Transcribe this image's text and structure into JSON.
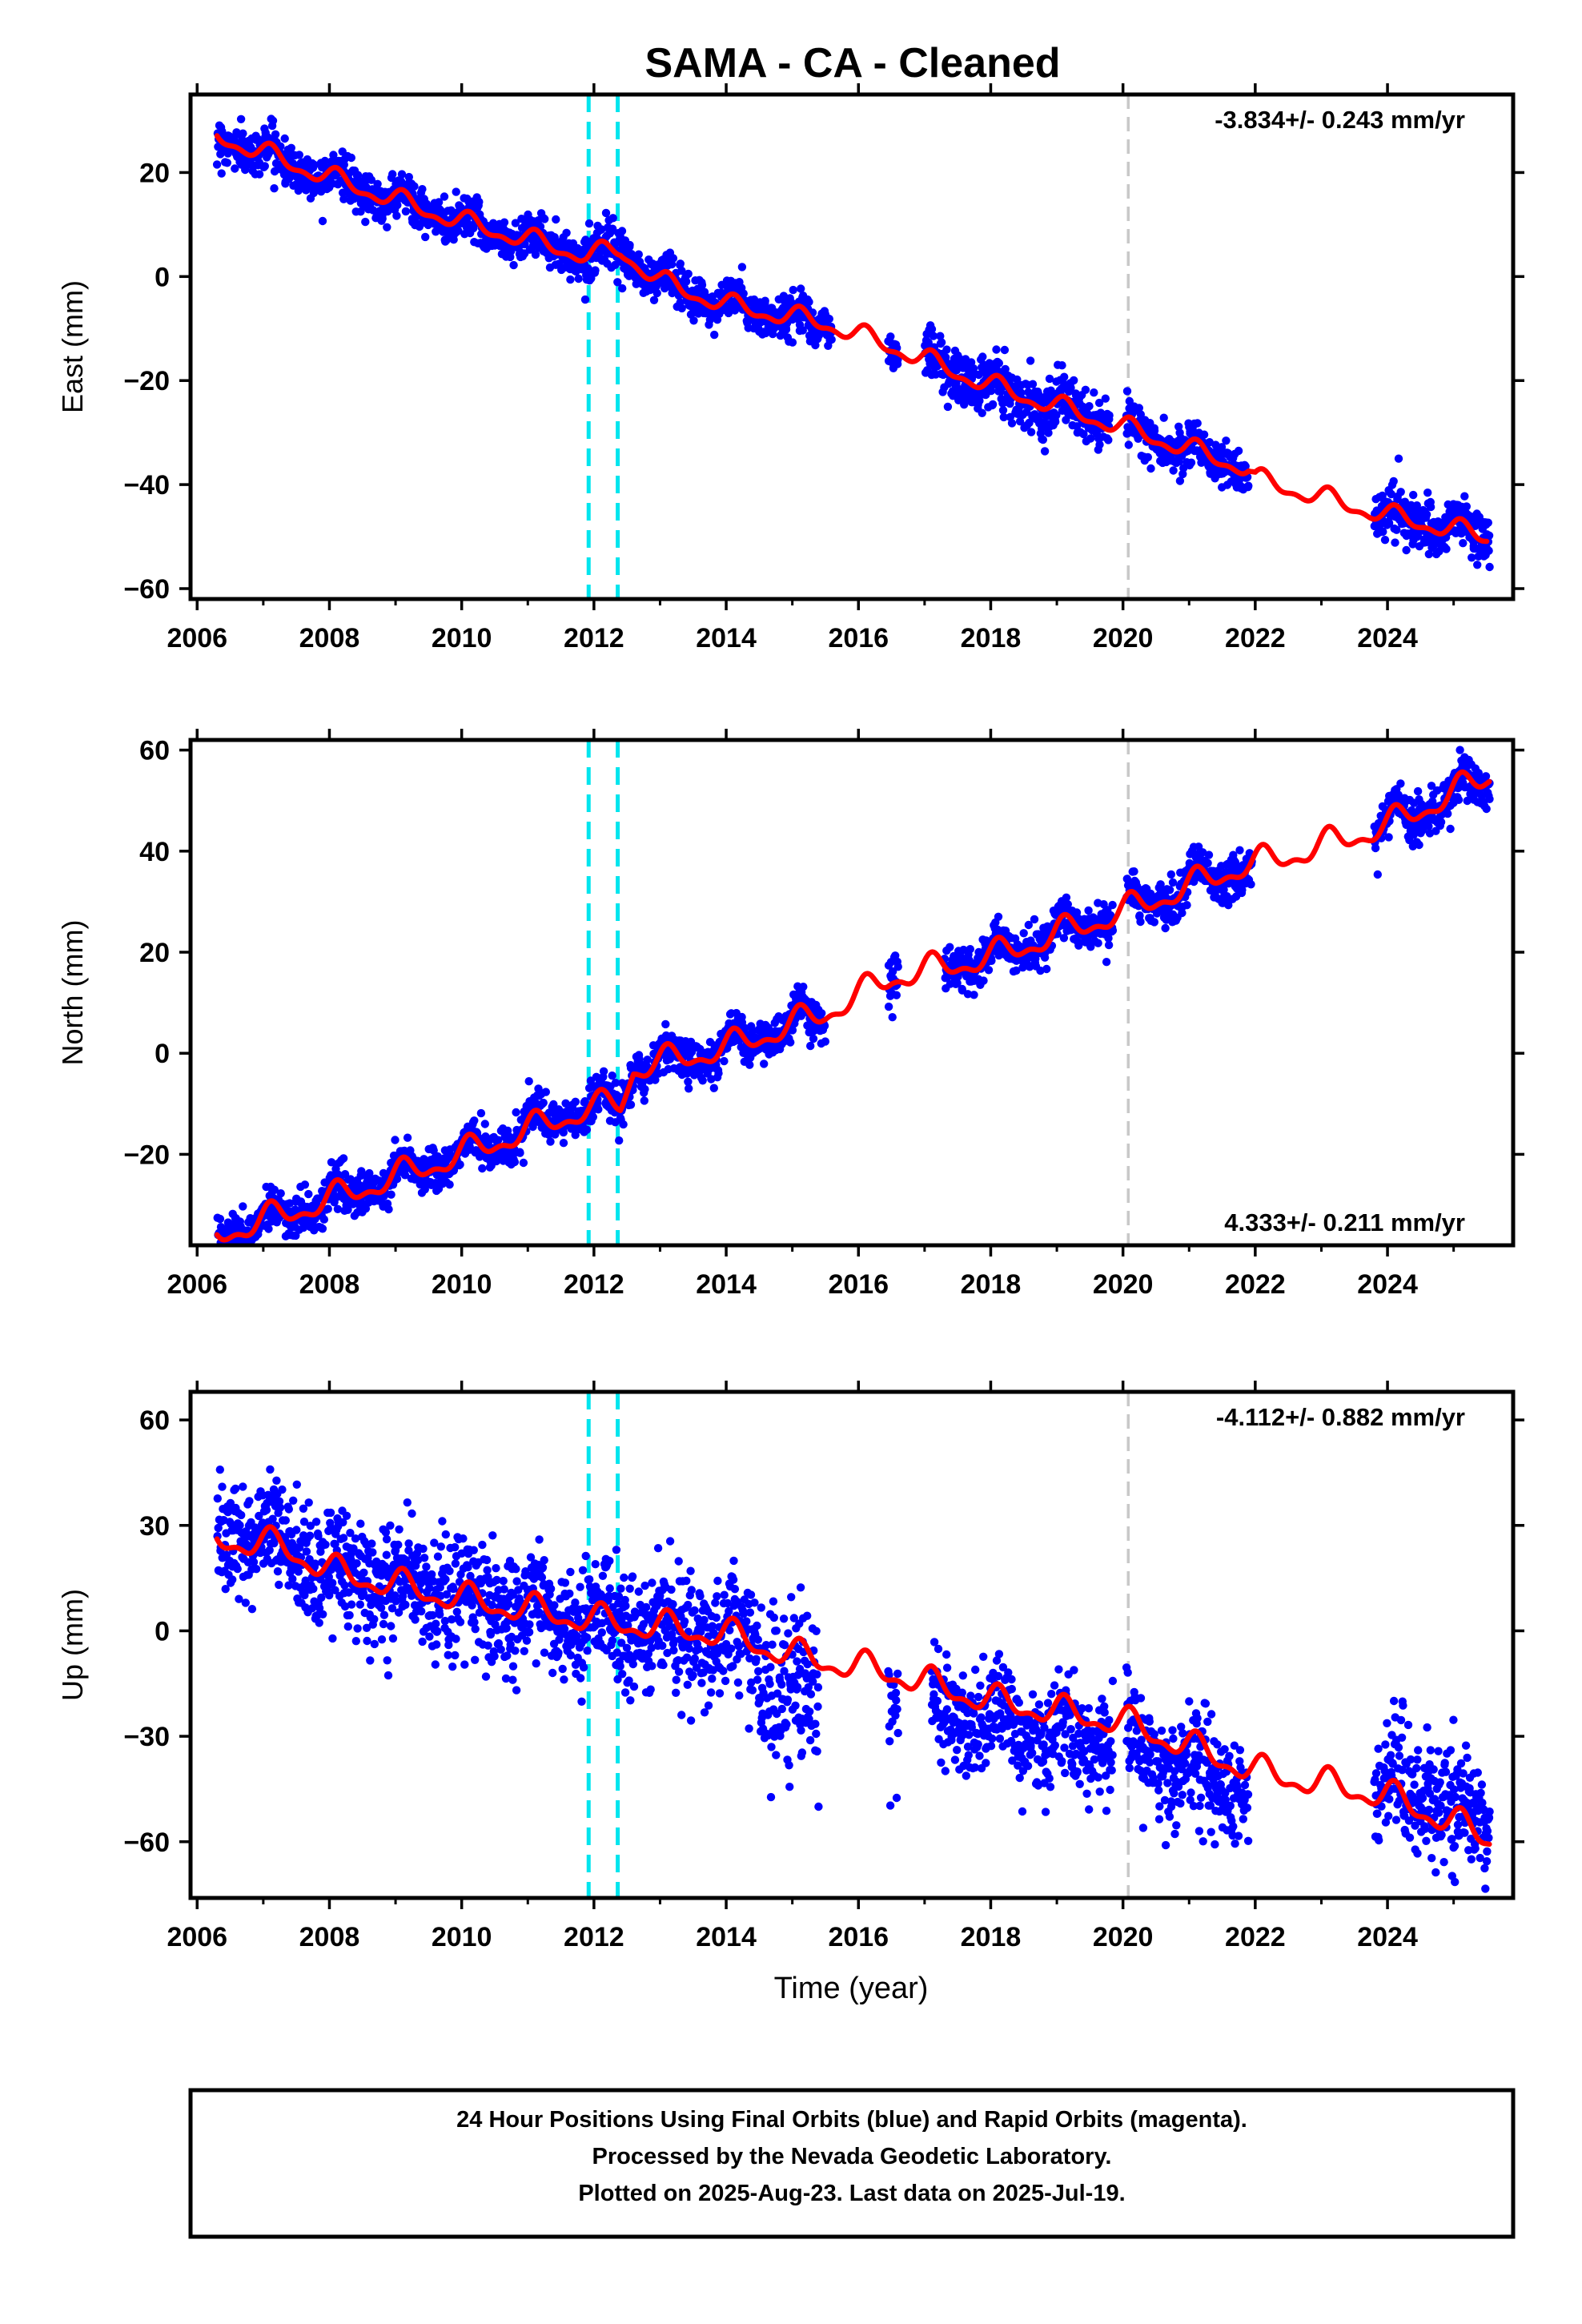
{
  "title": "SAMA  - CA - Cleaned",
  "xlabel": "Time (year)",
  "footer": {
    "line1": "24 Hour Positions Using Final Orbits (blue) and Rapid Orbits (magenta).",
    "line2": "Processed by the Nevada Geodetic Laboratory.",
    "line3": "Plotted on 2025-Aug-23. Last data on 2025-Jul-19."
  },
  "colors": {
    "data": "#0000ff",
    "model": "#ff0000",
    "equipment_change": "#00e5ee",
    "gray_marker": "#c8c8c8",
    "frame": "#000000"
  },
  "chart_data": [
    {
      "type": "scatter",
      "component": "east",
      "ylabel": "East (mm)",
      "velocity_label": "-3.834+/- 0.243 mm/yr",
      "velocity_label_position": "top-right",
      "xlim": [
        2005.9,
        2025.9
      ],
      "ylim": [
        -62,
        35
      ],
      "x_ticks": [
        2006,
        2008,
        2010,
        2012,
        2014,
        2016,
        2018,
        2020,
        2022,
        2024
      ],
      "y_ticks": [
        -60,
        -40,
        -20,
        0,
        20
      ],
      "grid": false,
      "vertical_markers": [
        {
          "x": 2011.92,
          "style": "cyan-dashed"
        },
        {
          "x": 2012.36,
          "style": "cyan-dashed"
        },
        {
          "x": 2020.08,
          "style": "gray-dashed"
        }
      ],
      "data_segments": [
        {
          "x": [
            2006.3,
            2015.6
          ],
          "noise": 2.0
        },
        {
          "x": [
            2016.45,
            2016.6
          ],
          "noise": 2.0
        },
        {
          "x": [
            2017.0,
            2019.8
          ],
          "noise": 2.5
        },
        {
          "x": [
            2020.05,
            2021.9
          ],
          "noise": 2.0
        },
        {
          "x": [
            2023.8,
            2025.55
          ],
          "noise": 2.5
        }
      ],
      "trend_points": [
        [
          2006.3,
          27
        ],
        [
          2008,
          19
        ],
        [
          2010,
          10.5
        ],
        [
          2011.9,
          4
        ],
        [
          2012.4,
          5
        ],
        [
          2013,
          -1
        ],
        [
          2014,
          -5.5
        ],
        [
          2015.5,
          -9
        ],
        [
          2016.5,
          -13.5
        ],
        [
          2018,
          -21
        ],
        [
          2020,
          -29
        ],
        [
          2021.9,
          -37
        ],
        [
          2022,
          -39
        ],
        [
          2024,
          -46
        ],
        [
          2025.5,
          -50
        ]
      ],
      "seasonal_amplitude": 1.6
    },
    {
      "type": "scatter",
      "component": "north",
      "ylabel": "North (mm)",
      "velocity_label": "4.333+/- 0.211 mm/yr",
      "velocity_label_position": "bottom-right",
      "xlim": [
        2005.9,
        2025.9
      ],
      "ylim": [
        -38,
        62
      ],
      "x_ticks": [
        2006,
        2008,
        2010,
        2012,
        2014,
        2016,
        2018,
        2020,
        2022,
        2024
      ],
      "y_ticks": [
        -20,
        0,
        20,
        40,
        60
      ],
      "grid": false,
      "vertical_markers": [
        {
          "x": 2011.92,
          "style": "cyan-dashed"
        },
        {
          "x": 2012.36,
          "style": "cyan-dashed"
        },
        {
          "x": 2020.08,
          "style": "gray-dashed"
        }
      ],
      "data_segments": [
        {
          "x": [
            2006.3,
            2015.5
          ],
          "noise": 2.0
        },
        {
          "x": [
            2016.45,
            2016.6
          ],
          "noise": 2.5
        },
        {
          "x": [
            2017.3,
            2019.85
          ],
          "noise": 2.0
        },
        {
          "x": [
            2020.05,
            2021.95
          ],
          "noise": 2.0
        },
        {
          "x": [
            2023.8,
            2025.55
          ],
          "noise": 2.3
        }
      ],
      "trend_points": [
        [
          2006.3,
          -36
        ],
        [
          2008,
          -29
        ],
        [
          2010,
          -20
        ],
        [
          2011.9,
          -11
        ],
        [
          2012.4,
          -10
        ],
        [
          2012.6,
          -3
        ],
        [
          2014,
          1
        ],
        [
          2015.5,
          8
        ],
        [
          2016.5,
          15
        ],
        [
          2018,
          19
        ],
        [
          2020,
          28
        ],
        [
          2021.8,
          37
        ],
        [
          2022.5,
          39
        ],
        [
          2024,
          45
        ],
        [
          2025.55,
          55
        ]
      ],
      "seasonal_amplitude": 2.3
    },
    {
      "type": "scatter",
      "component": "up",
      "ylabel": "Up (mm)",
      "velocity_label": "-4.112+/- 0.882 mm/yr",
      "velocity_label_position": "top-right",
      "xlim": [
        2005.9,
        2025.9
      ],
      "ylim": [
        -76,
        68
      ],
      "x_ticks": [
        2006,
        2008,
        2010,
        2012,
        2014,
        2016,
        2018,
        2020,
        2022,
        2024
      ],
      "y_ticks": [
        -60,
        -30,
        0,
        30,
        60
      ],
      "grid": false,
      "vertical_markers": [
        {
          "x": 2011.92,
          "style": "cyan-dashed"
        },
        {
          "x": 2012.36,
          "style": "cyan-dashed"
        },
        {
          "x": 2020.08,
          "style": "gray-dashed"
        }
      ],
      "data_segments": [
        {
          "x": [
            2006.3,
            2014.45
          ],
          "noise": 8.0
        },
        {
          "x": [
            2014.45,
            2015.4
          ],
          "noise": 11.0,
          "offset": -10
        },
        {
          "x": [
            2016.45,
            2016.6
          ],
          "noise": 9.0,
          "offset": -8
        },
        {
          "x": [
            2017.1,
            2019.85
          ],
          "noise": 7.0,
          "offset": -6
        },
        {
          "x": [
            2020.05,
            2021.9
          ],
          "noise": 8.0,
          "offset": -6
        },
        {
          "x": [
            2023.8,
            2025.55
          ],
          "noise": 8.0,
          "offset": 4
        }
      ],
      "trend_points": [
        [
          2006.3,
          26
        ],
        [
          2007.3,
          24
        ],
        [
          2008,
          17
        ],
        [
          2010,
          9
        ],
        [
          2012,
          3
        ],
        [
          2013,
          1
        ],
        [
          2014,
          -1
        ],
        [
          2015,
          -7
        ],
        [
          2016.5,
          -12
        ],
        [
          2018,
          -20
        ],
        [
          2020,
          -26
        ],
        [
          2022,
          -40
        ],
        [
          2024,
          -47
        ],
        [
          2025.55,
          -59
        ]
      ],
      "seasonal_amplitude": 3.5
    }
  ]
}
